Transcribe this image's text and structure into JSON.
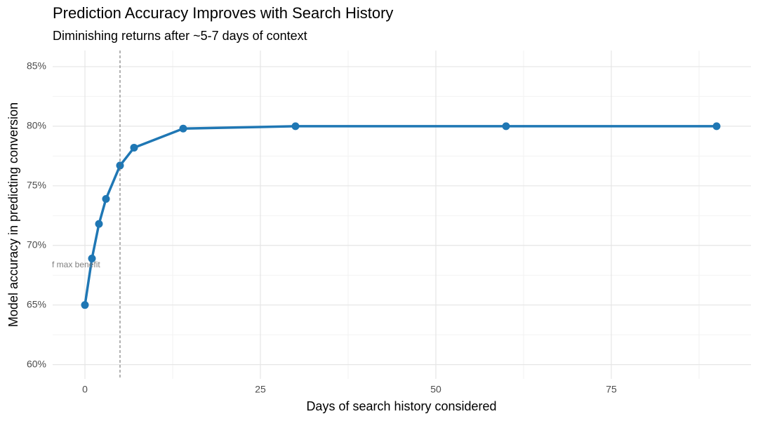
{
  "chart_data": {
    "type": "line",
    "title": "Prediction Accuracy Improves with Search History",
    "subtitle": "Diminishing returns after ~5-7 days of context",
    "x_label": "Days of search history considered",
    "y_label": "Model accuracy in predicting conversion",
    "x": [
      0,
      1,
      2,
      3,
      5,
      7,
      14,
      30,
      60,
      90
    ],
    "series": [
      {
        "name": "Accuracy",
        "color": "#1f77b4",
        "values": [
          65.0,
          68.9,
          71.8,
          73.9,
          76.7,
          78.2,
          79.8,
          80.0,
          80.0,
          80.0
        ]
      }
    ],
    "xlim": [
      -4.6,
      94.9
    ],
    "ylim": [
      58.8,
      86.35
    ],
    "xticks": [
      0,
      25,
      50,
      75
    ],
    "yticks": [
      {
        "value": 60,
        "label": "60%"
      },
      {
        "value": 65,
        "label": "65%"
      },
      {
        "value": 70,
        "label": "70%"
      },
      {
        "value": 75,
        "label": "75%"
      },
      {
        "value": 80,
        "label": "80%"
      },
      {
        "value": 85,
        "label": "85%"
      }
    ],
    "x_minor_ticks": [
      12.5,
      37.5,
      62.5,
      87.5
    ],
    "y_minor_ticks": [
      62.5,
      67.5,
      72.5,
      77.5,
      82.5
    ],
    "grid": true,
    "vline": {
      "x": 5,
      "color": "#666666"
    },
    "annotation": "f max benefit"
  }
}
